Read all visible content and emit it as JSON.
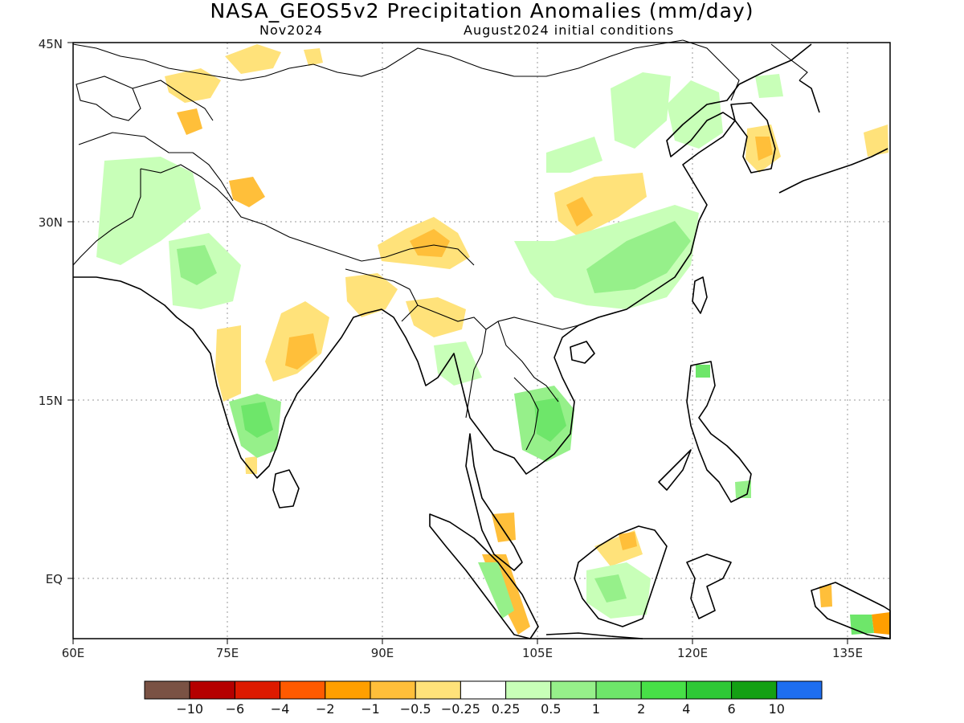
{
  "title": "NASA_GEOS5v2 Precipitation Anomalies (mm/day)",
  "subtitle_left": "Nov2024",
  "subtitle_right": "August2024 initial conditions",
  "lat_labels": [
    "45N",
    "30N",
    "15N",
    "EQ"
  ],
  "lon_labels": [
    "60E",
    "75E",
    "90E",
    "105E",
    "120E",
    "135E"
  ],
  "colorbar": {
    "labels": [
      "−10",
      "−6",
      "−4",
      "−2",
      "−1",
      "−0.5",
      "−0.25",
      "0.25",
      "0.5",
      "1",
      "2",
      "4",
      "6",
      "10"
    ],
    "colors": [
      "#7a5244",
      "#b50000",
      "#dd1a00",
      "#ff5a00",
      "#ff9f00",
      "#ffbf3a",
      "#ffe27a",
      "#ffffff",
      "#c8ffb8",
      "#96f08a",
      "#6ee66a",
      "#47e047",
      "#2ec836",
      "#14a014",
      "#1e6ef0"
    ]
  },
  "colors": {
    "land_outline": "#000000",
    "gridline": "#9a9a9a",
    "dry_mild": "#ffe27a",
    "dry_moderate": "#ffbf3a",
    "dry_strong": "#ff9f00",
    "wet_mild": "#c8ffb8",
    "wet_moderate": "#96f08a",
    "wet_strong": "#6ee66a"
  }
}
